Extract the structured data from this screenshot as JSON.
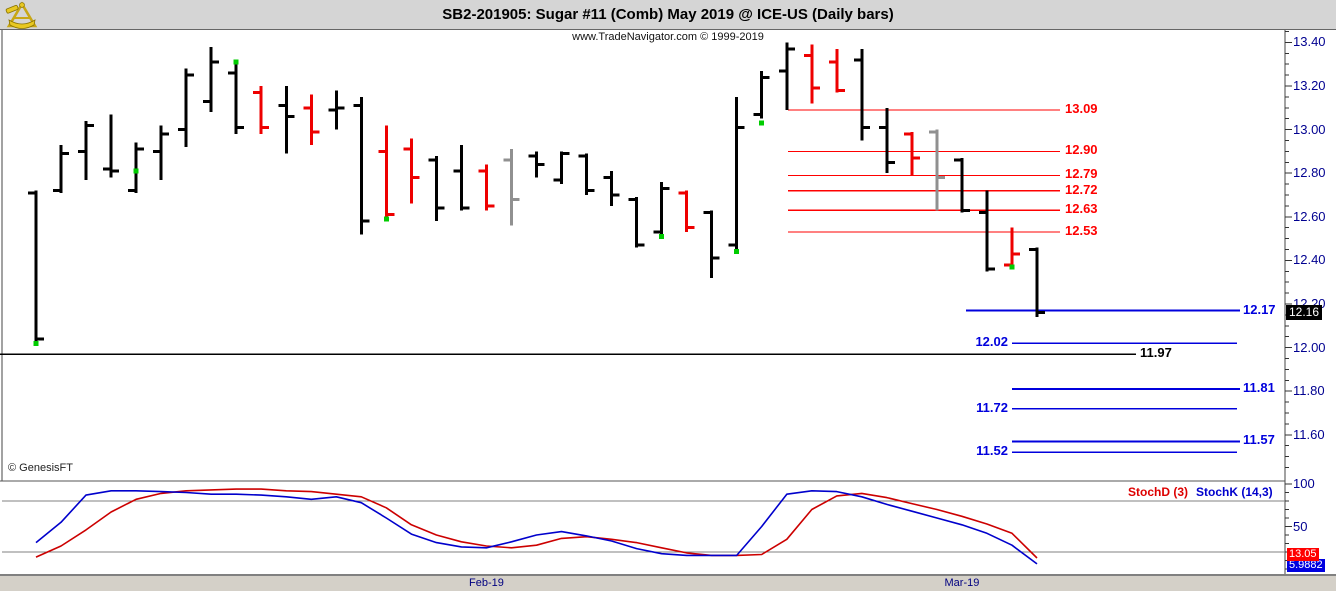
{
  "header": {
    "title": "SB2-201905:  Sugar #11 (Comb) May 2019 @ ICE-US  (Daily bars)",
    "subtitle": "www.TradeNavigator.com © 1999-2019",
    "logo": "genesis-sextant-logo"
  },
  "watermark": "© GenesisFT",
  "price_axis": {
    "labels": [
      "13.40",
      "13.20",
      "13.00",
      "12.80",
      "12.60",
      "12.40",
      "12.20",
      "12.00",
      "11.80",
      "11.60"
    ],
    "minor_step": 0.05,
    "label_step": 0.2,
    "last_price": "12.16"
  },
  "levels": {
    "resistance": [
      "13.09",
      "12.90",
      "12.79",
      "12.72",
      "12.63",
      "12.53"
    ],
    "support_right": [
      "12.17",
      "11.81",
      "11.57"
    ],
    "support_left": [
      "12.02",
      "11.72",
      "11.52"
    ],
    "major_support": "11.97"
  },
  "chart_data": {
    "type": "ohlc-bar",
    "title": "SB2-201905: Sugar #11 (Comb) May 2019 @ ICE-US (Daily bars)",
    "ylim": [
      11.4,
      13.46
    ],
    "bar_fields": [
      "open",
      "high",
      "low",
      "close",
      "color",
      "signal_marker_price"
    ],
    "bars": [
      [
        12.71,
        12.72,
        12.02,
        12.04,
        "black",
        12.02
      ],
      [
        12.72,
        12.93,
        12.71,
        12.89,
        "black",
        null
      ],
      [
        12.9,
        13.04,
        12.77,
        13.02,
        "black",
        null
      ],
      [
        12.82,
        13.07,
        12.78,
        12.81,
        "black",
        null
      ],
      [
        12.72,
        12.94,
        12.71,
        12.91,
        "black",
        12.81
      ],
      [
        12.9,
        13.02,
        12.77,
        12.98,
        "black",
        null
      ],
      [
        13.0,
        13.28,
        12.92,
        13.25,
        "black",
        null
      ],
      [
        13.13,
        13.38,
        13.08,
        13.31,
        "black",
        null
      ],
      [
        13.26,
        13.3,
        12.98,
        13.01,
        "black",
        13.31
      ],
      [
        13.17,
        13.2,
        12.98,
        13.01,
        "red",
        null
      ],
      [
        13.11,
        13.2,
        12.89,
        13.06,
        "black",
        null
      ],
      [
        13.1,
        13.16,
        12.93,
        12.99,
        "red",
        null
      ],
      [
        13.09,
        13.18,
        13.0,
        13.1,
        "black",
        null
      ],
      [
        13.11,
        13.15,
        12.52,
        12.58,
        "black",
        null
      ],
      [
        12.9,
        13.02,
        12.59,
        12.61,
        "red",
        12.59
      ],
      [
        12.91,
        12.96,
        12.66,
        12.78,
        "red",
        null
      ],
      [
        12.86,
        12.88,
        12.58,
        12.64,
        "black",
        null
      ],
      [
        12.81,
        12.93,
        12.63,
        12.64,
        "black",
        null
      ],
      [
        12.81,
        12.84,
        12.63,
        12.65,
        "red",
        null
      ],
      [
        12.86,
        12.91,
        12.56,
        12.68,
        "gray",
        null
      ],
      [
        12.88,
        12.9,
        12.78,
        12.84,
        "black",
        null
      ],
      [
        12.77,
        12.9,
        12.75,
        12.89,
        "black",
        null
      ],
      [
        12.88,
        12.89,
        12.7,
        12.72,
        "black",
        null
      ],
      [
        12.78,
        12.81,
        12.65,
        12.7,
        "black",
        null
      ],
      [
        12.68,
        12.69,
        12.46,
        12.47,
        "black",
        null
      ],
      [
        12.53,
        12.76,
        12.51,
        12.73,
        "black",
        12.51
      ],
      [
        12.71,
        12.72,
        12.53,
        12.55,
        "red",
        null
      ],
      [
        12.62,
        12.63,
        12.32,
        12.41,
        "black",
        null
      ],
      [
        12.47,
        13.15,
        12.45,
        13.01,
        "black",
        12.44
      ],
      [
        13.07,
        13.27,
        13.05,
        13.24,
        "black",
        13.03
      ],
      [
        13.27,
        13.4,
        13.09,
        13.37,
        "black",
        null
      ],
      [
        13.34,
        13.39,
        13.12,
        13.19,
        "red",
        null
      ],
      [
        13.31,
        13.37,
        13.17,
        13.18,
        "red",
        null
      ],
      [
        13.32,
        13.37,
        12.95,
        13.01,
        "black",
        null
      ],
      [
        13.01,
        13.1,
        12.8,
        12.85,
        "black",
        null
      ],
      [
        12.98,
        12.99,
        12.79,
        12.87,
        "red",
        null
      ],
      [
        12.99,
        13.0,
        12.63,
        12.78,
        "gray",
        null
      ],
      [
        12.86,
        12.87,
        12.62,
        12.63,
        "black",
        null
      ],
      [
        12.62,
        12.72,
        12.35,
        12.36,
        "black",
        null
      ],
      [
        12.38,
        12.55,
        12.37,
        12.43,
        "red",
        12.37
      ],
      [
        12.45,
        12.46,
        12.14,
        12.16,
        "black",
        null
      ]
    ],
    "stochastic": {
      "k_name": "StochK (14,3)",
      "d_name": "StochD (3)",
      "range": [
        0,
        100
      ],
      "k": [
        31,
        55,
        87,
        92,
        92,
        91,
        90,
        88,
        88,
        87,
        85,
        82,
        85,
        78,
        60,
        41,
        31,
        26,
        25,
        32,
        40,
        44,
        39,
        33,
        24,
        18,
        16,
        16,
        16,
        50,
        88,
        92,
        91,
        85,
        76,
        68,
        60,
        52,
        42,
        28,
        6
      ],
      "d": [
        14,
        27,
        46,
        67,
        82,
        89,
        92,
        93,
        94,
        94,
        92,
        91,
        88,
        85,
        72,
        52,
        40,
        32,
        27,
        25,
        28,
        36,
        38,
        35,
        31,
        25,
        19,
        16,
        16,
        17,
        35,
        70,
        86,
        89,
        84,
        77,
        70,
        62,
        53,
        42,
        13
      ]
    }
  },
  "stoch_panel": {
    "d_label": "StochD (3)",
    "k_label": "StochK (14,3)",
    "axis_labels": [
      {
        "value": 100,
        "text": "100"
      },
      {
        "value": 50,
        "text": "50"
      }
    ],
    "overbought": 80,
    "oversold": 20,
    "d_value": "13.05",
    "k_value": "5.9882"
  },
  "x_axis": {
    "labels": [
      {
        "text": "Feb-19",
        "bar_index": 18
      },
      {
        "text": "Mar-19",
        "bar_index": 37
      }
    ]
  },
  "colors": {
    "bar_black": "#000000",
    "bar_red": "#ee0000",
    "bar_gray": "#909090",
    "signal_green": "#00cc00",
    "resistance_red": "#ff0000",
    "support_blue": "#0000dd",
    "major_black": "#000000",
    "axis_navy": "#000090",
    "stoch_d_red": "#cc0000",
    "stoch_k_blue": "#0000cc",
    "grid_gray": "#808080",
    "strip_bg": "#d4d0c8",
    "header_bg": "#d5d5d5",
    "last_price_bg": "#000000"
  }
}
